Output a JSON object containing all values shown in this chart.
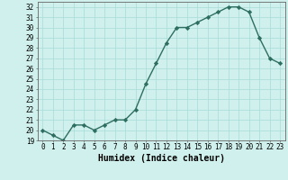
{
  "x": [
    0,
    1,
    2,
    3,
    4,
    5,
    6,
    7,
    8,
    9,
    10,
    11,
    12,
    13,
    14,
    15,
    16,
    17,
    18,
    19,
    20,
    21,
    22,
    23
  ],
  "y": [
    20,
    19.5,
    19,
    20.5,
    20.5,
    20,
    20.5,
    21,
    21,
    22,
    24.5,
    26.5,
    28.5,
    30,
    30,
    30.5,
    31,
    31.5,
    32,
    32,
    31.5,
    29,
    27,
    26.5
  ],
  "xlabel": "Humidex (Indice chaleur)",
  "ylabel": "",
  "line_color": "#2e6e60",
  "marker": "D",
  "marker_size": 2.2,
  "bg_color": "#cff0ec",
  "grid_color": "#a8ddd8",
  "ylim": [
    19,
    32.5
  ],
  "xlim": [
    -0.5,
    23.5
  ],
  "yticks": [
    19,
    20,
    21,
    22,
    23,
    24,
    25,
    26,
    27,
    28,
    29,
    30,
    31,
    32
  ],
  "xticks": [
    0,
    1,
    2,
    3,
    4,
    5,
    6,
    7,
    8,
    9,
    10,
    11,
    12,
    13,
    14,
    15,
    16,
    17,
    18,
    19,
    20,
    21,
    22,
    23
  ],
  "xlabel_fontsize": 7,
  "tick_fontsize": 5.5,
  "linewidth": 1.0
}
